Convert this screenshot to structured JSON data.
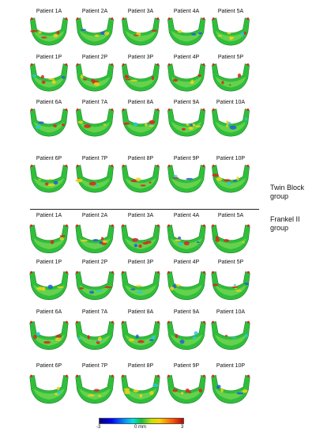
{
  "groups": [
    {
      "label_line1": "Twin Block",
      "label_line2": "group",
      "rows": [
        [
          "Patient 1A",
          "Patient 2A",
          "Patient 3A",
          "Patient 4A",
          "Patient 5A"
        ],
        [
          "Patient 1P",
          "Patient 2P",
          "Patient 3P",
          "Patient 4P",
          "Patient 5P"
        ],
        [
          "Patient 6A",
          "Patient 7A",
          "Patient 8A",
          "Patient 9A",
          "Patient 10A"
        ],
        [
          "Patient 6P",
          "Patient 7P",
          "Patient 8P",
          "Patient 9P",
          "Patient 10P"
        ]
      ]
    },
    {
      "label_line1": "Frankel II",
      "label_line2": "group",
      "rows": [
        [
          "Patient 1A",
          "Patient 2A",
          "Patient 3A",
          "Patient 4A",
          "Patient 5A"
        ],
        [
          "Patient 1P",
          "Patient 2P",
          "Patient 3P",
          "Patient 4P",
          "Patient 5P"
        ],
        [
          "Patient 6A",
          "Patient 7A",
          "Patient 8A",
          "Patient 9A",
          "Patient 10A"
        ],
        [
          "Patient 6P",
          "Patient 7P",
          "Patient 8P",
          "Patient 9P",
          "Patient 10P"
        ]
      ]
    }
  ],
  "colorbar": {
    "min_label": "-3",
    "mid_label": "0 mm",
    "max_label": "3",
    "colors": [
      "#00007a",
      "#0000ff",
      "#0090ff",
      "#00e0e0",
      "#10c040",
      "#c8e000",
      "#ffd000",
      "#ff6000",
      "#c00000"
    ]
  },
  "colors": {
    "base_green": "#2fbf3a",
    "light_green": "#7ed957",
    "yellow": "#f2d21b",
    "red": "#d9261c",
    "blue": "#1f5fd6",
    "cyan": "#28c8d8"
  }
}
